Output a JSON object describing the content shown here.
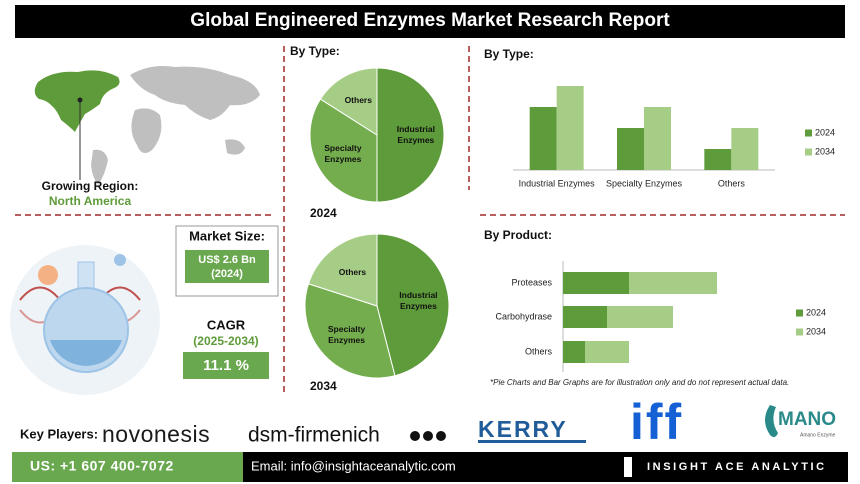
{
  "header": {
    "title": "Global Engineered Enzymes Market Research Report"
  },
  "region": {
    "label": "Growing Region:",
    "value": "North America"
  },
  "market_size": {
    "label": "Market Size:",
    "value": "US$ 2.6 Bn",
    "year": "(2024)"
  },
  "cagr": {
    "label": "CAGR",
    "period": "(2025-2034)",
    "value": "11.1 %"
  },
  "key_players": {
    "label": "Key Players:",
    "names": [
      "novonesis",
      "dsm-firmenich",
      "KERRY",
      "iff",
      "MANO"
    ],
    "subtitle": "Amano Enzyme"
  },
  "note": "*Pie Charts and Bar Graphs are for illustration only and do not represent actual data.",
  "footer": {
    "phone": "US: +1 607 400-7072",
    "email": "Email: info@insightaceanalytic.com",
    "brand": "INSIGHT ACE ANALYTIC"
  },
  "chart_data": [
    {
      "type": "pie",
      "title": "By Type:",
      "caption": "2024",
      "categories": [
        "Industrial Enzymes",
        "Specialty Enzymes",
        "Others"
      ],
      "values": [
        50,
        34,
        16
      ],
      "colors": [
        "#5e9b3a",
        "#74ad4d",
        "#a6cd86"
      ]
    },
    {
      "type": "pie",
      "caption": "2034",
      "categories": [
        "Industrial Enzymes",
        "Specialty Enzymes",
        "Others"
      ],
      "values": [
        46,
        34,
        20
      ],
      "colors": [
        "#5e9b3a",
        "#74ad4d",
        "#a6cd86"
      ]
    },
    {
      "type": "bar",
      "title": "By Type:",
      "categories": [
        "Industrial Enzymes",
        "Specialty Enzymes",
        "Others"
      ],
      "ylim": [
        0,
        4
      ],
      "series": [
        {
          "name": "2024",
          "color": "#5e9b3a",
          "values": [
            3,
            2,
            1
          ]
        },
        {
          "name": "2034",
          "color": "#a6cd86",
          "values": [
            4,
            3,
            2
          ]
        }
      ]
    },
    {
      "type": "stacked-hbar",
      "title": "By Product:",
      "categories": [
        "Proteases",
        "Carbohydrase",
        "Others"
      ],
      "xlim": [
        0,
        8
      ],
      "series": [
        {
          "name": "2024",
          "color": "#5e9b3a",
          "values": [
            3,
            2,
            1
          ]
        },
        {
          "name": "2034",
          "color": "#a6cd86",
          "values": [
            4,
            3,
            2
          ]
        }
      ]
    }
  ]
}
